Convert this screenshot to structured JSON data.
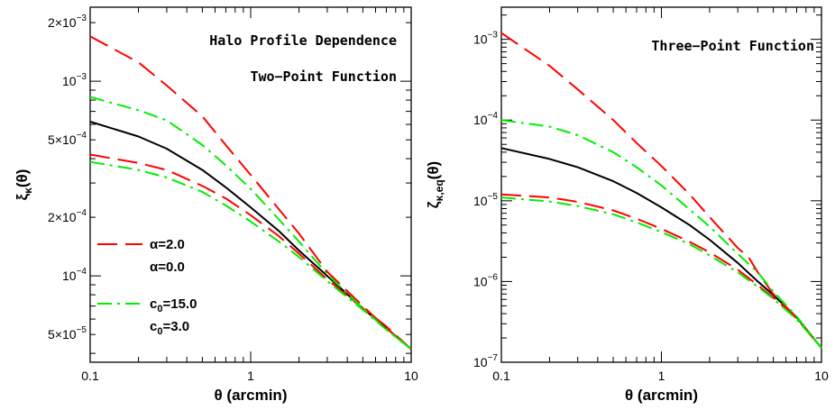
{
  "chart_data": [
    {
      "type": "line",
      "xscale": "log",
      "yscale": "log",
      "xlim": [
        0.1,
        10
      ],
      "ylim": [
        3.6e-05,
        0.0024
      ],
      "xlabel": "θ (arcmin)",
      "ylabel": "ξκ(θ)",
      "ylabel_main": "ξ",
      "ylabel_sub": "κ",
      "ylabel_rest": "(θ)",
      "x_ticks": [
        "0.1",
        "1",
        "10"
      ],
      "y_ticks": [
        {
          "value": 5e-05,
          "mant": "5×10",
          "exp": "−5"
        },
        {
          "value": 0.0001,
          "mant": "10",
          "exp": "−4"
        },
        {
          "value": 0.0002,
          "mant": "2×10",
          "exp": "−4"
        },
        {
          "value": 0.0005,
          "mant": "5×10",
          "exp": "−4"
        },
        {
          "value": 0.001,
          "mant": "10",
          "exp": "−3"
        },
        {
          "value": 0.002,
          "mant": "2×10",
          "exp": "−3"
        }
      ],
      "annotations": [
        "Halo Profile Dependence",
        "Two−Point Function"
      ],
      "legend": [
        {
          "style": "dashed",
          "color": "#ff0000",
          "label_main": "α",
          "label_sub": "",
          "label_rest": "=2.0"
        },
        {
          "style": "dashed",
          "color": "#ff0000",
          "label_main": "α",
          "label_sub": "",
          "label_rest": "=0.0"
        },
        {
          "style": "dashdot",
          "color": "#00ee00",
          "label_main": "c",
          "label_sub": "0",
          "label_rest": "=15.0"
        },
        {
          "style": "dashdot",
          "color": "#00ee00",
          "label_main": "c",
          "label_sub": "0",
          "label_rest": "=3.0"
        }
      ],
      "series": [
        {
          "style": "solid",
          "color": "#000000",
          "x": [
            0.1,
            0.2,
            0.3,
            0.5,
            0.7,
            1,
            1.5,
            2,
            3,
            5,
            7,
            10
          ],
          "y": [
            0.00062,
            0.00052,
            0.00045,
            0.00035,
            0.000285,
            0.000225,
            0.00017,
            0.000135,
            0.0001,
            6.8e-05,
            5.4e-05,
            4.2e-05
          ]
        },
        {
          "style": "dashed",
          "color": "#ff0000",
          "x": [
            0.1,
            0.2,
            0.3,
            0.5,
            0.7,
            1,
            1.5,
            2,
            3,
            5,
            7,
            10
          ],
          "y": [
            0.0017,
            0.00125,
            0.00095,
            0.00066,
            0.00047,
            0.00033,
            0.00022,
            0.000165,
            0.000105,
            7e-05,
            5.4e-05,
            4.2e-05
          ]
        },
        {
          "style": "dashed",
          "color": "#ff0000",
          "x": [
            0.1,
            0.2,
            0.3,
            0.5,
            0.7,
            1,
            1.5,
            2,
            3,
            5,
            7,
            10
          ],
          "y": [
            0.00042,
            0.00038,
            0.00035,
            0.00029,
            0.00025,
            0.000205,
            0.00016,
            0.00013,
            9.6e-05,
            6.8e-05,
            5.5e-05,
            4.2e-05
          ]
        },
        {
          "style": "dashdot",
          "color": "#00ee00",
          "x": [
            0.1,
            0.2,
            0.3,
            0.5,
            0.7,
            1,
            1.5,
            2,
            3,
            5,
            7,
            10
          ],
          "y": [
            0.00083,
            0.00071,
            0.00063,
            0.00047,
            0.00037,
            0.00028,
            0.000195,
            0.00015,
            0.000102,
            6.8e-05,
            5.3e-05,
            4.2e-05
          ]
        },
        {
          "style": "dashdot",
          "color": "#00ee00",
          "x": [
            0.1,
            0.2,
            0.3,
            0.5,
            0.7,
            1,
            1.5,
            2,
            3,
            5,
            7,
            10
          ],
          "y": [
            0.000385,
            0.00035,
            0.00032,
            0.00027,
            0.00023,
            0.00019,
            0.00015,
            0.000125,
            9.4e-05,
            6.7e-05,
            5.3e-05,
            4.2e-05
          ]
        }
      ]
    },
    {
      "type": "line",
      "xscale": "log",
      "yscale": "log",
      "xlim": [
        0.1,
        10
      ],
      "ylim": [
        1e-07,
        0.0025
      ],
      "xlabel": "θ (arcmin)",
      "ylabel": "ζκ,eq(θ)",
      "ylabel_main": "ζ",
      "ylabel_sub": "κ,eq",
      "ylabel_rest": "(θ)",
      "x_ticks": [
        "0.1",
        "1",
        "10"
      ],
      "y_ticks": [
        {
          "value": 1e-07,
          "mant": "10",
          "exp": "−7"
        },
        {
          "value": 1e-06,
          "mant": "10",
          "exp": "−6"
        },
        {
          "value": 1e-05,
          "mant": "10",
          "exp": "−5"
        },
        {
          "value": 0.0001,
          "mant": "10",
          "exp": "−4"
        },
        {
          "value": 0.001,
          "mant": "10",
          "exp": "−3"
        }
      ],
      "annotations": [
        "Three−Point Function"
      ],
      "legend": [],
      "series": [
        {
          "style": "solid",
          "color": "#000000",
          "x": [
            0.1,
            0.2,
            0.3,
            0.5,
            0.7,
            1,
            1.5,
            2,
            3,
            4,
            5,
            7,
            10
          ],
          "y": [
            4.5e-05,
            3.3e-05,
            2.6e-05,
            1.75e-05,
            1.25e-05,
            8.3e-06,
            5e-06,
            3.3e-06,
            1.7e-06,
            1e-06,
            6.8e-07,
            3.6e-07,
            1.5e-07
          ]
        },
        {
          "style": "dashed",
          "color": "#ff0000",
          "x": [
            0.1,
            0.2,
            0.3,
            0.5,
            0.7,
            1,
            1.5,
            2,
            3,
            3.5,
            4,
            5,
            7,
            10
          ],
          "y": [
            0.0012,
            0.00047,
            0.00024,
            0.0001,
            5.2e-05,
            2.7e-05,
            1.2e-05,
            6.3e-06,
            2.6e-06,
            2e-06,
            1.3e-06,
            7e-07,
            3.6e-07,
            1.5e-07
          ]
        },
        {
          "style": "dashed",
          "color": "#ff0000",
          "x": [
            0.1,
            0.2,
            0.3,
            0.5,
            0.7,
            1,
            1.5,
            2,
            3,
            4,
            5,
            7,
            10
          ],
          "y": [
            1.2e-05,
            1.1e-05,
            9.7e-06,
            7.6e-06,
            6e-06,
            4.5e-06,
            3.1e-06,
            2.3e-06,
            1.4e-06,
            9e-07,
            6.3e-07,
            3.5e-07,
            1.5e-07
          ]
        },
        {
          "style": "dashdot",
          "color": "#00ee00",
          "x": [
            0.1,
            0.2,
            0.3,
            0.5,
            0.7,
            1,
            1.5,
            2,
            3,
            4,
            5,
            7,
            10
          ],
          "y": [
            0.0001,
            8.3e-05,
            6.5e-05,
            4e-05,
            2.6e-05,
            1.55e-05,
            7.8e-06,
            4.8e-06,
            2.2e-06,
            1.3e-06,
            7.5e-07,
            3.7e-07,
            1.5e-07
          ]
        },
        {
          "style": "dashdot",
          "color": "#00ee00",
          "x": [
            0.1,
            0.2,
            0.3,
            0.5,
            0.7,
            1,
            1.5,
            2,
            3,
            4,
            5,
            7,
            10
          ],
          "y": [
            1.1e-05,
            9.8e-06,
            8.6e-06,
            6.8e-06,
            5.4e-06,
            4.1e-06,
            2.9e-06,
            2.1e-06,
            1.3e-06,
            8.6e-07,
            6.1e-07,
            3.4e-07,
            1.5e-07
          ]
        }
      ]
    }
  ]
}
